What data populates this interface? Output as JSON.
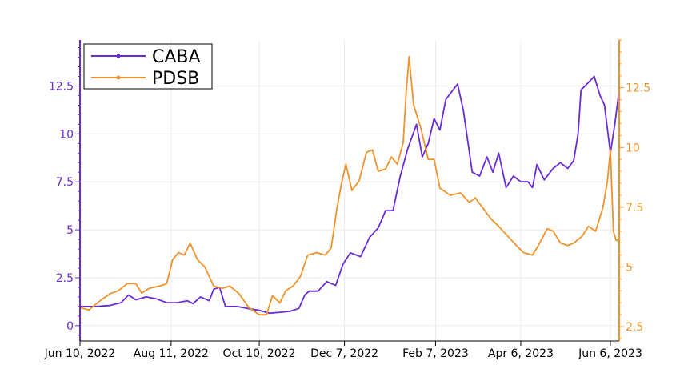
{
  "chart_data": {
    "type": "line",
    "x_axis": {
      "type": "date",
      "ticks": [
        "Jun 10, 2022",
        "Aug 11, 2022",
        "Oct 10, 2022",
        "Dec 7, 2022",
        "Feb 7, 2023",
        "Apr 6, 2023",
        "Jun 6, 2023"
      ],
      "range": [
        "2022-06-10",
        "2023-06-12"
      ]
    },
    "y_axis_left": {
      "series": "CABA",
      "color": "#6a2bd6",
      "ticks": [
        "0",
        "2.5",
        "5",
        "7.5",
        "10",
        "12.5"
      ],
      "range": [
        -0.8,
        14.9
      ]
    },
    "y_axis_right": {
      "series": "PDSB",
      "color": "#f0922b",
      "ticks": [
        "2.5",
        "5",
        "7.5",
        "10",
        "12.5"
      ],
      "range": [
        1.9,
        14.5
      ]
    },
    "legend": {
      "position": "top-left"
    },
    "grid": true,
    "series": [
      {
        "name": "CABA",
        "axis": "left",
        "color": "#6a2bd6",
        "points": [
          [
            "2022-06-10",
            1.0
          ],
          [
            "2022-06-20",
            1.0
          ],
          [
            "2022-06-30",
            1.05
          ],
          [
            "2022-07-08",
            1.2
          ],
          [
            "2022-07-13",
            1.6
          ],
          [
            "2022-07-18",
            1.35
          ],
          [
            "2022-07-25",
            1.5
          ],
          [
            "2022-08-01",
            1.4
          ],
          [
            "2022-08-08",
            1.2
          ],
          [
            "2022-08-15",
            1.2
          ],
          [
            "2022-08-22",
            1.3
          ],
          [
            "2022-08-26",
            1.15
          ],
          [
            "2022-08-31",
            1.5
          ],
          [
            "2022-09-06",
            1.3
          ],
          [
            "2022-09-09",
            1.9
          ],
          [
            "2022-09-13",
            2.0
          ],
          [
            "2022-09-17",
            1.0
          ],
          [
            "2022-09-25",
            1.0
          ],
          [
            "2022-10-02",
            0.9
          ],
          [
            "2022-10-10",
            0.8
          ],
          [
            "2022-10-17",
            0.65
          ],
          [
            "2022-10-24",
            0.7
          ],
          [
            "2022-10-31",
            0.75
          ],
          [
            "2022-11-06",
            0.9
          ],
          [
            "2022-11-10",
            1.6
          ],
          [
            "2022-11-13",
            1.8
          ],
          [
            "2022-11-19",
            1.8
          ],
          [
            "2022-11-25",
            2.3
          ],
          [
            "2022-12-01",
            2.1
          ],
          [
            "2022-12-06",
            3.2
          ],
          [
            "2022-12-11",
            3.8
          ],
          [
            "2022-12-18",
            3.6
          ],
          [
            "2022-12-24",
            4.6
          ],
          [
            "2022-12-30",
            5.1
          ],
          [
            "2023-01-04",
            6.0
          ],
          [
            "2023-01-09",
            6.0
          ],
          [
            "2023-01-14",
            7.8
          ],
          [
            "2023-01-19",
            9.2
          ],
          [
            "2023-01-25",
            10.5
          ],
          [
            "2023-01-29",
            8.8
          ],
          [
            "2023-02-02",
            9.5
          ],
          [
            "2023-02-06",
            10.8
          ],
          [
            "2023-02-10",
            10.2
          ],
          [
            "2023-02-14",
            11.8
          ],
          [
            "2023-02-18",
            12.2
          ],
          [
            "2023-02-22",
            12.6
          ],
          [
            "2023-02-26",
            11.2
          ],
          [
            "2023-03-04",
            8.0
          ],
          [
            "2023-03-09",
            7.8
          ],
          [
            "2023-03-14",
            8.8
          ],
          [
            "2023-03-18",
            8.0
          ],
          [
            "2023-03-22",
            9.0
          ],
          [
            "2023-03-27",
            7.2
          ],
          [
            "2023-04-01",
            7.8
          ],
          [
            "2023-04-06",
            7.5
          ],
          [
            "2023-04-11",
            7.5
          ],
          [
            "2023-04-14",
            7.2
          ],
          [
            "2023-04-17",
            8.4
          ],
          [
            "2023-04-22",
            7.6
          ],
          [
            "2023-04-28",
            8.2
          ],
          [
            "2023-05-03",
            8.5
          ],
          [
            "2023-05-08",
            8.2
          ],
          [
            "2023-05-12",
            8.6
          ],
          [
            "2023-05-15",
            10.0
          ],
          [
            "2023-05-17",
            12.3
          ],
          [
            "2023-05-21",
            12.6
          ],
          [
            "2023-05-26",
            13.0
          ],
          [
            "2023-05-30",
            12.0
          ],
          [
            "2023-06-02",
            11.5
          ],
          [
            "2023-06-06",
            9.0
          ],
          [
            "2023-06-09",
            10.5
          ],
          [
            "2023-06-12",
            12.3
          ]
        ]
      },
      {
        "name": "PDSB",
        "axis": "right",
        "color": "#f0922b",
        "points": [
          [
            "2022-06-10",
            3.3
          ],
          [
            "2022-06-16",
            3.2
          ],
          [
            "2022-06-24",
            3.6
          ],
          [
            "2022-07-01",
            3.9
          ],
          [
            "2022-07-06",
            4.0
          ],
          [
            "2022-07-12",
            4.3
          ],
          [
            "2022-07-18",
            4.3
          ],
          [
            "2022-07-22",
            3.9
          ],
          [
            "2022-07-27",
            4.1
          ],
          [
            "2022-08-03",
            4.2
          ],
          [
            "2022-08-08",
            4.3
          ],
          [
            "2022-08-12",
            5.3
          ],
          [
            "2022-08-16",
            5.6
          ],
          [
            "2022-08-20",
            5.5
          ],
          [
            "2022-08-24",
            6.0
          ],
          [
            "2022-08-29",
            5.3
          ],
          [
            "2022-09-03",
            5.0
          ],
          [
            "2022-09-09",
            4.2
          ],
          [
            "2022-09-15",
            4.1
          ],
          [
            "2022-09-20",
            4.2
          ],
          [
            "2022-09-26",
            3.9
          ],
          [
            "2022-10-03",
            3.3
          ],
          [
            "2022-10-10",
            3.0
          ],
          [
            "2022-10-15",
            3.0
          ],
          [
            "2022-10-19",
            3.8
          ],
          [
            "2022-10-24",
            3.5
          ],
          [
            "2022-10-28",
            4.0
          ],
          [
            "2022-11-02",
            4.2
          ],
          [
            "2022-11-07",
            4.6
          ],
          [
            "2022-11-12",
            5.5
          ],
          [
            "2022-11-18",
            5.6
          ],
          [
            "2022-11-24",
            5.5
          ],
          [
            "2022-11-28",
            5.8
          ],
          [
            "2022-12-02",
            7.5
          ],
          [
            "2022-12-05",
            8.5
          ],
          [
            "2022-12-08",
            9.3
          ],
          [
            "2022-12-12",
            8.2
          ],
          [
            "2022-12-17",
            8.6
          ],
          [
            "2022-12-22",
            9.8
          ],
          [
            "2022-12-26",
            9.9
          ],
          [
            "2022-12-30",
            9.0
          ],
          [
            "2023-01-04",
            9.1
          ],
          [
            "2023-01-08",
            9.6
          ],
          [
            "2023-01-12",
            9.3
          ],
          [
            "2023-01-16",
            10.2
          ],
          [
            "2023-01-18",
            12.3
          ],
          [
            "2023-01-20",
            13.8
          ],
          [
            "2023-01-23",
            11.8
          ],
          [
            "2023-01-28",
            10.8
          ],
          [
            "2023-02-02",
            9.5
          ],
          [
            "2023-02-06",
            9.5
          ],
          [
            "2023-02-10",
            8.3
          ],
          [
            "2023-02-17",
            8.0
          ],
          [
            "2023-02-24",
            8.1
          ],
          [
            "2023-03-02",
            7.7
          ],
          [
            "2023-03-06",
            7.9
          ],
          [
            "2023-03-12",
            7.4
          ],
          [
            "2023-03-17",
            7.0
          ],
          [
            "2023-03-22",
            6.7
          ],
          [
            "2023-03-28",
            6.3
          ],
          [
            "2023-04-03",
            5.9
          ],
          [
            "2023-04-08",
            5.6
          ],
          [
            "2023-04-14",
            5.5
          ],
          [
            "2023-04-18",
            5.9
          ],
          [
            "2023-04-24",
            6.6
          ],
          [
            "2023-04-28",
            6.5
          ],
          [
            "2023-05-03",
            6.0
          ],
          [
            "2023-05-08",
            5.9
          ],
          [
            "2023-05-12",
            6.0
          ],
          [
            "2023-05-18",
            6.3
          ],
          [
            "2023-05-22",
            6.7
          ],
          [
            "2023-05-27",
            6.5
          ],
          [
            "2023-06-01",
            7.5
          ],
          [
            "2023-06-04",
            8.6
          ],
          [
            "2023-06-06",
            9.9
          ],
          [
            "2023-06-08",
            6.5
          ],
          [
            "2023-06-10",
            6.1
          ],
          [
            "2023-06-12",
            6.2
          ]
        ]
      }
    ]
  }
}
